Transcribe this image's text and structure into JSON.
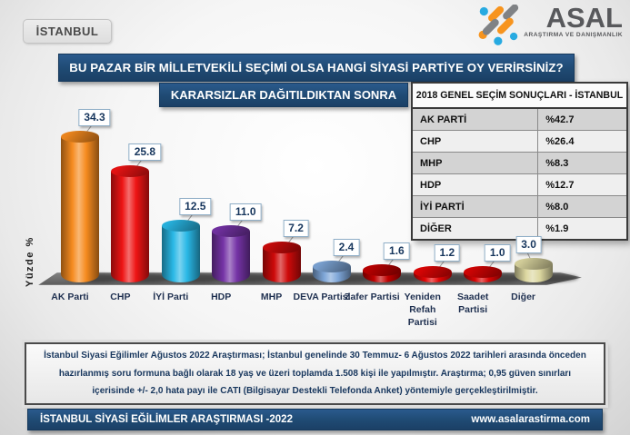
{
  "page": {
    "region_badge": "İSTANBUL",
    "question_title": "BU PAZAR BİR MİLLETVEKİLİ SEÇİMİ OLSA HANGİ SİYASİ PARTİYE OY VERİRSİNİZ?",
    "subtitle": "KARARSIZLAR DAĞITILDIKTAN SONRA"
  },
  "logo": {
    "name": "ASAL",
    "tagline": "ARAŞTIRMA VE DANIŞMANLIK",
    "mark_colors": {
      "orange": "#F7941E",
      "blue": "#27AAE1",
      "gray": "#808285"
    }
  },
  "chart_data": {
    "type": "bar",
    "title": "KARARSIZLAR DAĞITILDIKTAN SONRA",
    "ylabel": "Yüzde  %",
    "categories": [
      "AK Parti",
      "CHP",
      "İYİ Parti",
      "HDP",
      "MHP",
      "DEVA Partisi",
      "Zafer Partisi",
      "Yeniden Refah Partisi",
      "Saadet Partisi",
      "Diğer"
    ],
    "values": [
      34.3,
      25.8,
      12.5,
      11.0,
      7.2,
      2.4,
      1.6,
      1.2,
      1.0,
      3.0
    ],
    "bar_colors": [
      "#F68B1F",
      "#EE1414",
      "#29B8E6",
      "#7533A6",
      "#CE0A0A",
      "#7EA6D8",
      "#C00000",
      "#E30505",
      "#D90404",
      "#DCD7A0"
    ],
    "ylim": [
      0,
      40
    ],
    "grid": false,
    "legend": "none",
    "data_labels": [
      "34.3",
      "25.8",
      "12.5",
      "11.0",
      "7.2",
      "2.4",
      "1.6",
      "1.2",
      "1.0",
      "3.0"
    ]
  },
  "results_table": {
    "title": "2018 GENEL SEÇİM SONUÇLARI - İSTANBUL",
    "rows": [
      {
        "party": "AK PARTİ",
        "value": "%42.7"
      },
      {
        "party": "CHP",
        "value": "%26.4"
      },
      {
        "party": "MHP",
        "value": "%8.3"
      },
      {
        "party": "HDP",
        "value": "%12.7"
      },
      {
        "party": "İYİ PARTİ",
        "value": "%8.0"
      },
      {
        "party": "DİĞER",
        "value": "%1.9"
      }
    ]
  },
  "footnote": "İstanbul Siyasi Eğilimler Ağustos 2022 Araştırması; İstanbul genelinde 30 Temmuz- 6 Ağustos 2022 tarihleri arasında önceden hazırlanmış soru formuna bağlı olarak 18 yaş ve üzeri toplamda 1.508 kişi ile yapılmıştır. Araştırma; 0,95 güven sınırları içerisinde +/- 2,0 hata payı ile CATI (Bilgisayar Destekli Telefonda Anket) yöntemiyle gerçekleştirilmiştir.",
  "footer": {
    "left": "İSTANBUL SİYASİ EĞİLİMLER ARAŞTIRMASI -2022",
    "right": "www.asalarastirma.com"
  },
  "colors": {
    "navy": "#1F4A73",
    "platform_gray": "#6E6E6E",
    "value_box_border": "#8FAEC7",
    "value_text": "#17365D"
  }
}
